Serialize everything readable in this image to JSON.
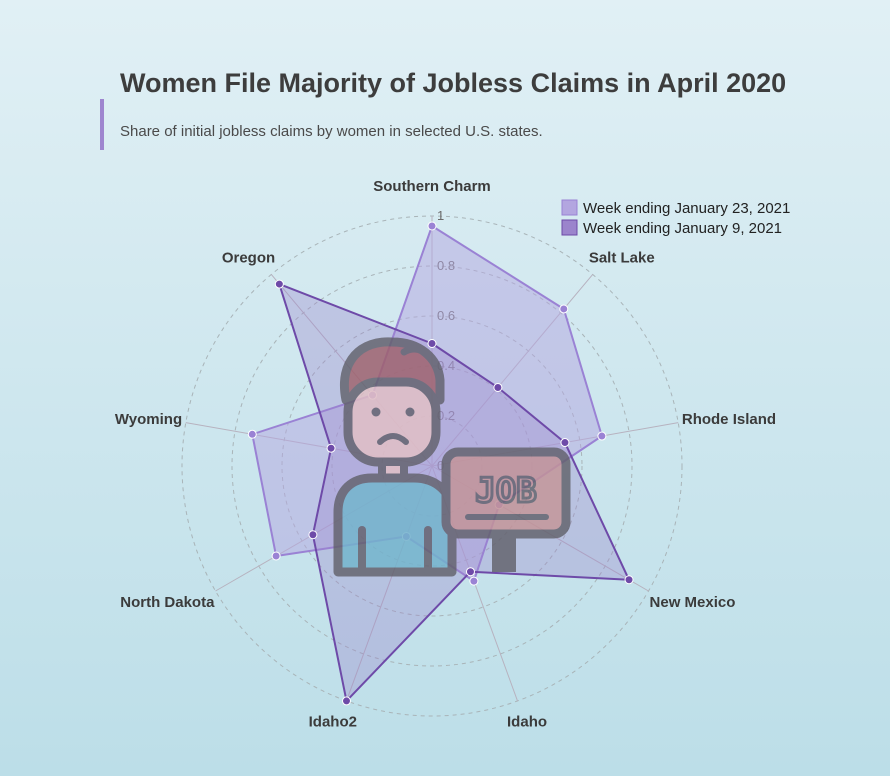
{
  "header": {
    "title": "Women File Majority of Jobless Claims in April 2020",
    "subtitle": "Share of initial jobless claims by women in selected U.S. states."
  },
  "colors": {
    "series1_fill": "#b3a6e0",
    "series1_stroke": "#9a82d4",
    "series2_fill": "#9b84cc",
    "series2_stroke": "#6e4aa8",
    "accent": "#9e86cf"
  },
  "chart_data": {
    "type": "radar",
    "categories": [
      "Southern Charm",
      "Salt Lake",
      "Rhode Island",
      "New Mexico",
      "Idaho",
      "Idaho2",
      "North Dakota",
      "Wyoming",
      "Oregon"
    ],
    "rlim": [
      0,
      1
    ],
    "ticks": [
      "0",
      "0.2",
      "0.4",
      "0.6",
      "0.8",
      "1"
    ],
    "grid": true,
    "legend_position": "top-right",
    "series": [
      {
        "name": "Week ending January 23, 2021",
        "values": [
          0.96,
          0.82,
          0.69,
          0.31,
          0.49,
          0.3,
          0.72,
          0.73,
          0.37
        ]
      },
      {
        "name": "Week ending January 9, 2021",
        "values": [
          0.49,
          0.41,
          0.54,
          0.91,
          0.45,
          1.0,
          0.55,
          0.41,
          0.95
        ]
      }
    ]
  },
  "illustration": {
    "icon": "job-seeker-icon",
    "sign_text": "JOB"
  }
}
